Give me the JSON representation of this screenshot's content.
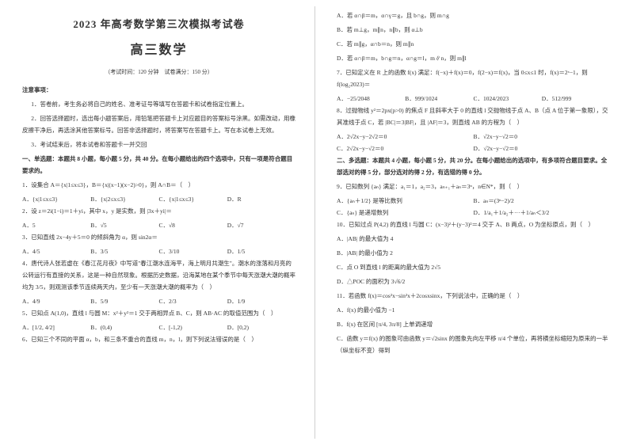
{
  "left": {
    "title1": "2023 年高考数学第三次模拟考试卷",
    "title2": "高三数学",
    "meta": "（考试时间：120 分钟　试卷满分：150 分）",
    "notice_head": "注意事项：",
    "notice1": "1．答卷前，考生务必将自己的姓名、准考证号等填写在答题卡和试卷指定位置上。",
    "notice2": "2．回答选择题时，选出每小题答案后，用铅笔把答题卡上对应题目的答案标号涂黑。如需改动，用橡皮擦干净后，再选涂其他答案标号。回答非选择题时，将答案写在答题卡上。写在本试卷上无效。",
    "notice3": "3．考试结束后，将本试卷和答题卡一并交回",
    "sec1": "一、单选题：本题共 8 小题，每小题 5 分，共 40 分。在每小题给出的四个选项中，只有一项是符合题目要求的。",
    "q1": "1．设集合 A＝{x|1≤x≤3}，B＝{x|(x−1)(x−2)>0}，则 A∩B＝（　）",
    "q1A": "A．{x|1≤x≤3}",
    "q1B": "B．{x|2≤x≤3}",
    "q1C": "C．{x|1≤x≤3}",
    "q1D": "D．R",
    "q2": "2．设 z＝2i(1−i)＝1＋yi，其中 x，y 是实数，则 |3x＋yi|＝",
    "q2A": "A．5",
    "q2B": "B．√5",
    "q2C": "C．√8",
    "q2D": "D．√7",
    "q3": "3．已知直线 2x−4y＋5＝0 的倾斜角为 α，则 sin2α＝",
    "q3A": "A．4/5",
    "q3B": "B．3/5",
    "q3C": "C．3/10",
    "q3D": "D．1/5",
    "q4": "4．唐代诗人张若虚在《春江花月夜》中写道\"春江潮水连海平，海上明月共潮生\"。潮水的涨落和月亮的公转运行有直接的关系，这是一种自然现象。根据历史数据，沿海某地在某个季节中每天涨潮大潮的概率均为 3/5，则观测该季节连续两天内，至少有一天涨潮大潮的概率为（　）",
    "q4A": "A．4/9",
    "q4B": "B．5/9",
    "q4C": "C．2/3",
    "q4D": "D．1/9",
    "q5": "5．已知点 A(1,0)，直线 l 与圆 M：x²＋y²＝1 交于两相异点 B、C，则 AB·AC 的取值范围为（　）",
    "q5A": "A．[1/2, 4/2]",
    "q5B": "B．(0,4)",
    "q5C": "C．[-1,2)",
    "q5D": "D．[0,2)",
    "q6": "6．已知三个不同的平面 α，b，和三条不重合的直线 m，n，l，则下列说法错误的是（　）"
  },
  "right": {
    "q6A": "A．若 α∩β＝m，α∩γ＝g，且 b∩g，则 m∩g",
    "q6B": "B．若 m⊥g，m∥n，n∥b，则 α⊥b",
    "q6C": "C．若 m∥g，α∩b＝n，则 m∥n",
    "q6D": "D．若 α∩β＝m，b∩g＝n，α∩g＝l，m∥n，则 m∥l",
    "q7": "7．已知定义在 R 上的函数 f(x) 满足：f(−x)＋f(x)＝0，f(2−x)＝f(x)，当 0≤x≤1 时，f(x)＝2ˣ−1，则 f(log₂2023)＝",
    "q7A": "A．−25/2048",
    "q7B": "B．999/1024",
    "q7C": "C．1024/2023",
    "q7D": "D．512/999",
    "q8": "8．过抛物线 y²＝2px(p>0) 的焦点 F 且斜率大于 0 的直线 l 交抛物线于点 A、B（点 A 位于第一象限），交其准线于点 C，若 |BC|＝3|BF|，且 |AF|＝3，则直线 AB 的方程为（　）",
    "q8A": "A．2√2x−y−2√2＝0",
    "q8B": "B．√2x−y−√2＝0",
    "q8C": "C．2√2x−y−√2＝0",
    "q8D": "D．√2x−y−√2＝0",
    "sec2": "二、多选题：本题共 4 小题，每小题 5 分，共 20 分。在每小题给出的选项中，有多项符合题目要求。全部选对的得 5 分，部分选对的得 2 分，有选错的得 0 分。",
    "q9": "9．已知数列 {aₙ} 满足：a₁＝1，a₂＝3，aₙ₊₁＋aₙ＝3ⁿ，n∈N*，则（　）",
    "q9A": "A．{aₙ＋1/2} 是等比数列",
    "q9B": "B．aₙ＝(3ⁿ−2)/2",
    "q9C": "C．{aₙ} 是递增数列",
    "q9D": "D．1/a₁＋1/a₂＋···＋1/aₙ＜3/2",
    "q10": "10．已知过点 P(4,2) 的直线 l 与圆 C：(x−3)²＋(y−3)²＝4 交于 A、B 两点，O 为坐标原点，则（　）",
    "q10A": "A．|AB| 的最大值为 4",
    "q10B": "B．|AB| 的最小值为 2",
    "q10C": "C．点 O 到直线 l 的距离的最大值为 2√5",
    "q10D": "D．△POC 的面积为 3√6/2",
    "q11": "11．若函数 f(x)＝cos²x−sin²x＋2cosxsinx，下列说法中，正确的是（　）",
    "q11A": "A．f(x) 的最小值为 −1",
    "q11B": "B．f(x) 在区间 [π/4, 3π/8] 上单调递增",
    "q11C": "C．函数 y＝f(x) 的图象可由函数 y＝√2sinx 的图象先向左平移 π/4 个单位，再将横坐标缩短为原来的一半（纵坐标不变）得到"
  }
}
